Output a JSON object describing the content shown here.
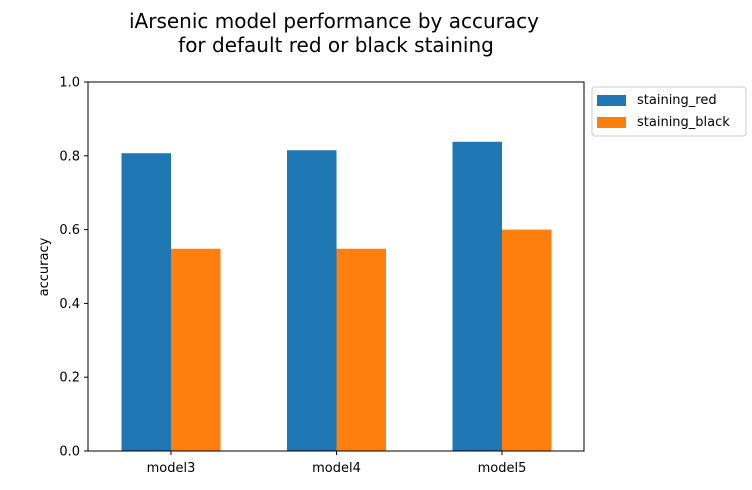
{
  "chart_data": {
    "type": "bar",
    "title_lines": [
      "iArsenic model performance by accuracy",
      "for default red or black staining"
    ],
    "xlabel": "",
    "ylabel": "accuracy",
    "categories": [
      "model3",
      "model4",
      "model5"
    ],
    "series": [
      {
        "name": "staining_red",
        "color": "#1f77b4",
        "values": [
          0.807,
          0.815,
          0.838
        ]
      },
      {
        "name": "staining_black",
        "color": "#ff7f0e",
        "values": [
          0.548,
          0.548,
          0.6
        ]
      }
    ],
    "ylim": [
      0,
      1.0
    ],
    "yticks": [
      "0.0",
      "0.2",
      "0.4",
      "0.6",
      "0.8",
      "1.0"
    ],
    "grid": false,
    "legend_position": "outside-top-right"
  }
}
